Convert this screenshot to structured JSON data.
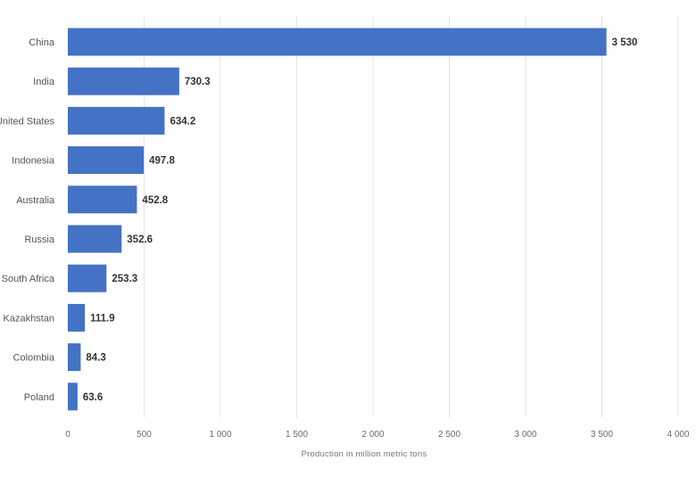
{
  "chart_data": {
    "type": "bar",
    "orientation": "horizontal",
    "categories": [
      "China",
      "India",
      "United States",
      "Indonesia",
      "Australia",
      "Russia",
      "South Africa",
      "Kazakhstan",
      "Colombia",
      "Poland"
    ],
    "values": [
      3530,
      730.3,
      634.2,
      497.8,
      452.8,
      352.6,
      253.3,
      111.9,
      84.3,
      63.6
    ],
    "value_labels": [
      "3 530",
      "730.3",
      "634.2",
      "497.8",
      "452.8",
      "352.6",
      "253.3",
      "111.9",
      "84.3",
      "63.6"
    ],
    "xlabel": "Production in million metric tons",
    "ylabel": "",
    "xlim": [
      0,
      4000
    ],
    "xticks": [
      0,
      500,
      1000,
      1500,
      2000,
      2500,
      3000,
      3500,
      4000
    ],
    "xtick_labels": [
      "0",
      "500",
      "1 000",
      "1 500",
      "2 000",
      "2 500",
      "3 000",
      "3 500",
      "4 000"
    ],
    "grid": true,
    "bar_color": "#4472c4"
  }
}
